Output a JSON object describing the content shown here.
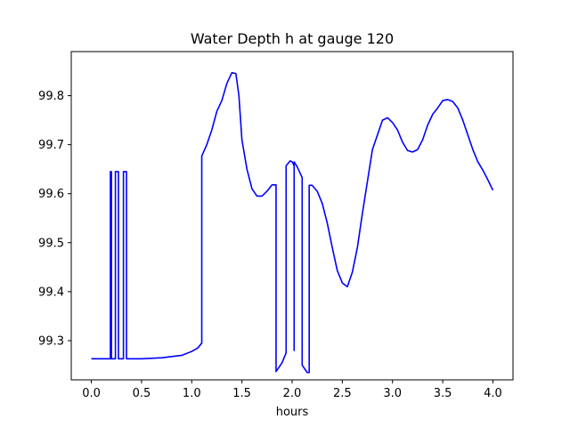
{
  "chart_data": {
    "type": "line",
    "title": "Water Depth h at gauge 120",
    "xlabel": "hours",
    "ylabel": "",
    "xlim": [
      -0.2,
      4.2
    ],
    "ylim": [
      99.22,
      99.89
    ],
    "xticks": [
      "0.0",
      "0.5",
      "1.0",
      "1.5",
      "2.0",
      "2.5",
      "3.0",
      "3.5",
      "4.0"
    ],
    "xtick_values": [
      0,
      0.5,
      1.0,
      1.5,
      2.0,
      2.5,
      3.0,
      3.5,
      4.0
    ],
    "yticks": [
      "99.3",
      "99.4",
      "99.5",
      "99.6",
      "99.7",
      "99.8"
    ],
    "ytick_values": [
      99.3,
      99.4,
      99.5,
      99.6,
      99.7,
      99.8
    ],
    "grid": false,
    "series": [
      {
        "color": "#0000ff",
        "x": [
          0,
          0.19,
          0.19,
          0.2,
          0.2,
          0.24,
          0.24,
          0.27,
          0.27,
          0.32,
          0.32,
          0.35,
          0.35,
          0.5,
          0.7,
          0.9,
          1.0,
          1.06,
          1.1,
          1.1,
          1.15,
          1.2,
          1.25,
          1.3,
          1.35,
          1.4,
          1.44,
          1.47,
          1.5,
          1.55,
          1.6,
          1.65,
          1.7,
          1.75,
          1.8,
          1.84,
          1.84,
          1.9,
          1.94,
          1.94,
          1.98,
          2.0,
          2.02,
          2.02,
          2.02,
          2.05,
          2.1,
          2.1,
          2.15,
          2.17,
          2.17,
          2.2,
          2.25,
          2.3,
          2.35,
          2.4,
          2.45,
          2.5,
          2.55,
          2.6,
          2.65,
          2.7,
          2.8,
          2.9,
          2.95,
          3.0,
          3.05,
          3.1,
          3.15,
          3.2,
          3.25,
          3.3,
          3.35,
          3.4,
          3.45,
          3.5,
          3.55,
          3.6,
          3.65,
          3.7,
          3.75,
          3.8,
          3.85,
          3.9,
          3.95,
          4.0
        ],
        "y": [
          99.263,
          99.263,
          99.645,
          99.645,
          99.263,
          99.263,
          99.645,
          99.645,
          99.263,
          99.263,
          99.645,
          99.645,
          99.263,
          99.263,
          99.265,
          99.27,
          99.278,
          99.285,
          99.295,
          99.677,
          99.7,
          99.73,
          99.768,
          99.79,
          99.825,
          99.847,
          99.845,
          99.8,
          99.71,
          99.65,
          99.61,
          99.595,
          99.595,
          99.605,
          99.618,
          99.618,
          99.237,
          99.255,
          99.275,
          99.657,
          99.667,
          99.665,
          99.657,
          99.28,
          99.665,
          99.655,
          99.633,
          99.25,
          99.235,
          99.235,
          99.617,
          99.617,
          99.605,
          99.58,
          99.54,
          99.49,
          99.443,
          99.418,
          99.41,
          99.44,
          99.49,
          99.56,
          99.69,
          99.75,
          99.755,
          99.745,
          99.73,
          99.705,
          99.688,
          99.685,
          99.69,
          99.71,
          99.74,
          99.762,
          99.775,
          99.79,
          99.792,
          99.788,
          99.775,
          99.75,
          99.72,
          99.69,
          99.665,
          99.648,
          99.628,
          99.607
        ]
      }
    ]
  }
}
